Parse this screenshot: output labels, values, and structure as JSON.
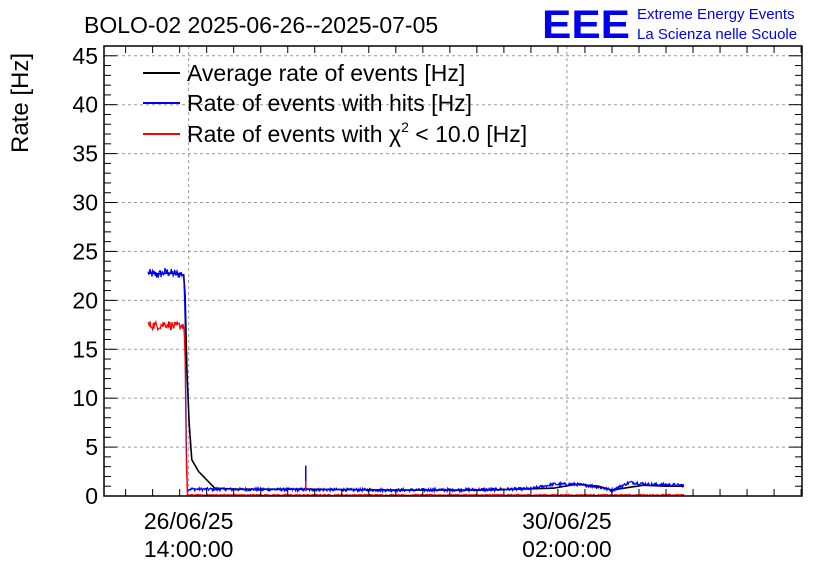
{
  "header": {
    "title": "BOLO-02 2025-06-26--2025-07-05",
    "logo_mark": "EEE",
    "logo_line1": "Extreme Energy Events",
    "logo_line2": "La Scienza nelle Scuole"
  },
  "colors": {
    "average": "#000000",
    "hits": "#0000ff",
    "chi2": "#ff0000",
    "grid": "#9a9a9a",
    "logo": "#0000ee"
  },
  "chart_data": {
    "type": "line",
    "title": "BOLO-02 2025-06-26--2025-07-05",
    "ylabel": "Rate [Hz]",
    "xlabel": "",
    "ylim": [
      0,
      46
    ],
    "yticks": [
      0,
      5,
      10,
      15,
      20,
      25,
      30,
      35,
      40,
      45
    ],
    "x_unit": "hours since 26/06/25 00:00",
    "xlim": [
      -4.8,
      150.2
    ],
    "xticks": [
      {
        "x": 14,
        "label_date": "26/06/25",
        "label_time": "14:00:00"
      },
      {
        "x": 98,
        "label_date": "30/06/25",
        "label_time": "02:00:00"
      }
    ],
    "grid": true,
    "legend_position": "top-left",
    "legend": {
      "average": "Average rate of events [Hz]",
      "hits": "Rate of events with hits [Hz]",
      "chi2_prefix": "Rate of events with ",
      "chi2_symbol": "χ",
      "chi2_exp": "2",
      "chi2_suffix": " < 10.0 [Hz]"
    },
    "series": [
      {
        "name": "Average rate of events [Hz]",
        "key": "average",
        "x": [
          5.0,
          7.5,
          9.5,
          12.9,
          13.2,
          13.6,
          14.1,
          14.7,
          16.2,
          19.8,
          25.0,
          40.0,
          60.0,
          80.0,
          95.0,
          100.0,
          105.0,
          108.0,
          115.0,
          120.0,
          124.0
        ],
        "y": [
          22.8,
          22.7,
          22.8,
          22.6,
          20.5,
          13.0,
          7.5,
          3.7,
          2.5,
          0.8,
          0.7,
          0.7,
          0.6,
          0.6,
          0.8,
          1.2,
          1.0,
          0.6,
          1.1,
          1.0,
          1.0
        ]
      },
      {
        "name": "Rate of events with hits [Hz]",
        "key": "hits",
        "x": [
          5.0,
          7.0,
          9.0,
          11.0,
          12.9,
          13.2,
          13.5,
          13.7,
          40.0,
          60.0,
          80.0,
          90.0,
          95.0,
          100.0,
          104.0,
          108.0,
          112.0,
          116.0,
          124.0
        ],
        "y": [
          22.8,
          22.6,
          22.9,
          22.7,
          22.7,
          18.0,
          5.0,
          0.7,
          0.65,
          0.6,
          0.65,
          0.75,
          1.2,
          1.2,
          1.0,
          0.6,
          1.4,
          1.2,
          1.1
        ],
        "noise": 0.9,
        "spikes": [
          {
            "x": 40.0,
            "y": 3.1
          }
        ]
      },
      {
        "name": "Rate of events with χ2 < 10.0 [Hz]",
        "key": "chi2",
        "x": [
          5.0,
          7.0,
          9.0,
          11.0,
          12.9,
          13.2,
          13.5,
          13.7,
          60.0,
          124.0
        ],
        "y": [
          17.5,
          17.4,
          17.6,
          17.3,
          17.5,
          14.0,
          3.0,
          0.1,
          0.1,
          0.1
        ],
        "noise": 0.9,
        "spikes": [
          {
            "x": 40.0,
            "y": 1.5
          }
        ]
      }
    ]
  }
}
